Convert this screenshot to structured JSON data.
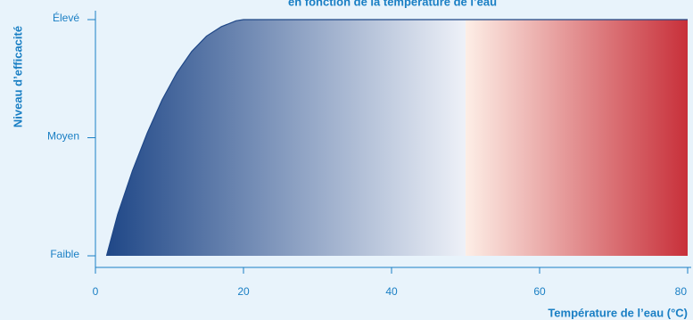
{
  "chart_data": {
    "type": "area",
    "title": "en fonction de la température de l’eau",
    "xlabel": "Température de l’eau (°C)",
    "ylabel": "Niveau d’efficacité",
    "xlim": [
      0,
      80
    ],
    "x_ticks": [
      "0",
      "20",
      "40",
      "60",
      "80"
    ],
    "x_tick_values": [
      0,
      20,
      40,
      60,
      80
    ],
    "y_ticks": [
      "Faible",
      "Moyen",
      "Élevé"
    ],
    "y_tick_values": [
      0,
      1,
      2
    ],
    "ylim": [
      0,
      2
    ],
    "series": [
      {
        "x": [
          1.5,
          3,
          5,
          7,
          9,
          11,
          13,
          15,
          17,
          19,
          20,
          30,
          40,
          50,
          60,
          70,
          80
        ],
        "y": [
          0,
          0.35,
          0.72,
          1.04,
          1.32,
          1.55,
          1.73,
          1.86,
          1.94,
          1.99,
          2,
          2,
          2,
          2,
          2,
          2,
          2
        ]
      }
    ],
    "gradient_split_x": 50,
    "colors": {
      "cold_dark": "#1f4787",
      "cold_light": "#eef1f8",
      "warm_light": "#fdeee6",
      "warm_dark": "#c8303a",
      "text": "#1a7fc4",
      "axis": "#1a7fc4",
      "background": "#e8f3fb"
    }
  }
}
